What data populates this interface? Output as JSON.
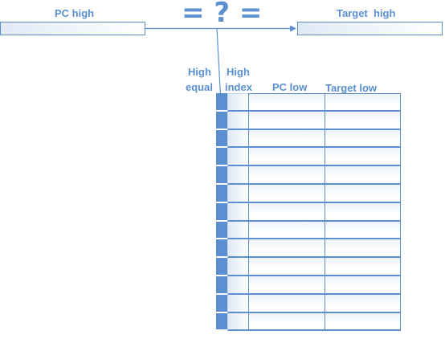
{
  "registers": {
    "pc_high": {
      "label": "PC high"
    },
    "target_high": {
      "label": "Target  high"
    }
  },
  "comparator": {
    "symbol": "= ? ="
  },
  "table": {
    "headers": {
      "high_equal_line1": "High",
      "high_equal_line2": "equal",
      "high_index_line1": "High",
      "high_index_line2": "index",
      "pc_low": "PC low",
      "target_low": "Target low"
    },
    "row_count": 13
  },
  "colors": {
    "accent": "#5b8fd0",
    "fill_light": "#dfe9f6"
  }
}
